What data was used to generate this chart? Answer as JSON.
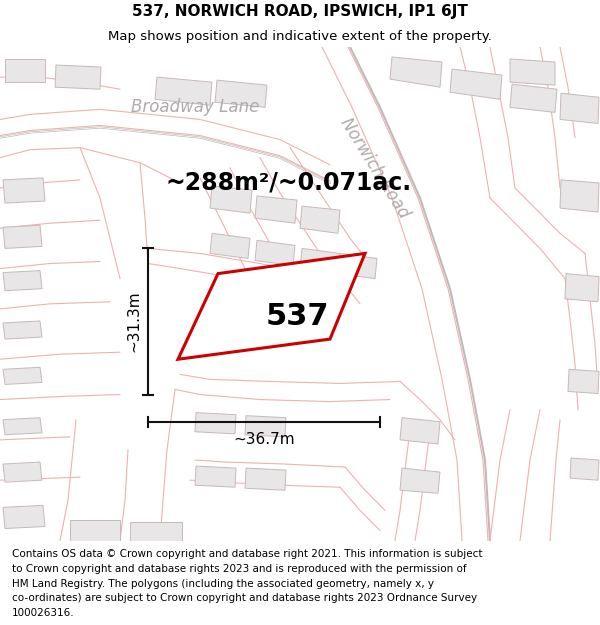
{
  "title_line1": "537, NORWICH ROAD, IPSWICH, IP1 6JT",
  "title_line2": "Map shows position and indicative extent of the property.",
  "area_label": "~288m²/~0.071ac.",
  "property_number": "537",
  "dim_vertical": "~31.3m",
  "dim_horizontal": "~36.7m",
  "street_label1": "Broadway Lane",
  "street_label2": "Norwich Road",
  "map_bg": "#faf8f8",
  "building_fill": "#e8e6e6",
  "building_edge": "#c8b8b8",
  "road_fill": "#ffffff",
  "road_line_color": "#f0b0b0",
  "road_gray_color": "#c0baba",
  "property_outline_color": "#cc0000",
  "property_fill": "white",
  "dim_line_color": "#111111",
  "title_fontsize": 11,
  "subtitle_fontsize": 9.5,
  "footer_fontsize": 7.5,
  "street_fontsize": 12,
  "area_fontsize": 17,
  "property_num_fontsize": 22,
  "dim_fontsize": 11,
  "footer_lines": [
    "Contains OS data © Crown copyright and database right 2021. This information is subject",
    "to Crown copyright and database rights 2023 and is reproduced with the permission of",
    "HM Land Registry. The polygons (including the associated geometry, namely x, y",
    "co-ordinates) are subject to Crown copyright and database rights 2023 Ordnance Survey",
    "100026316."
  ]
}
